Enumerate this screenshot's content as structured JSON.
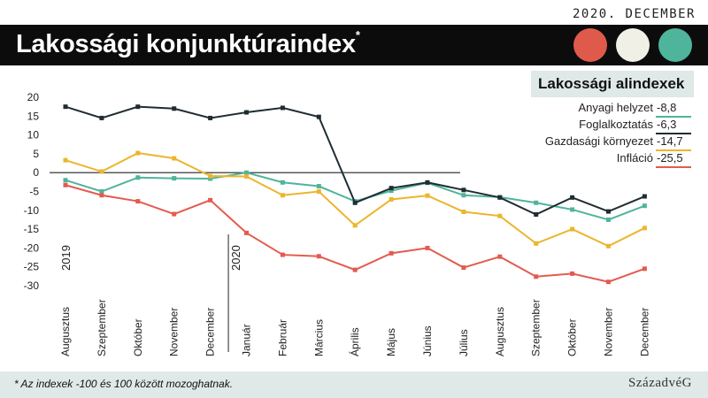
{
  "header": {
    "date": "2020. DECEMBER",
    "title": "Lakossági konjunktúraindex",
    "title_mark": "*"
  },
  "legend": {
    "title": "Lakossági alindexek",
    "items": [
      {
        "label": "Anyagi helyzet",
        "value": "-8,8",
        "color": "#4fb49c"
      },
      {
        "label": "Foglalkoztatás",
        "value": "-6,3",
        "color": "#1f2d33"
      },
      {
        "label": "Gazdasági környezet",
        "value": "-14,7",
        "color": "#ecb52c"
      },
      {
        "label": "Infláció",
        "value": "-25,5",
        "color": "#e35b4f"
      }
    ]
  },
  "footer": {
    "note": "* Az indexek -100 és 100 között mozoghatnak.",
    "brand": "SzázadvéG"
  },
  "chart_data": {
    "type": "line",
    "x": [
      "Augusztus",
      "Szeptember",
      "Október",
      "November",
      "December",
      "Január",
      "Február",
      "Március",
      "Április",
      "Május",
      "Június",
      "Július",
      "Augusztus",
      "Szeptember",
      "Október",
      "November",
      "December"
    ],
    "year_labels": [
      {
        "label": "2019",
        "at_index": 0
      },
      {
        "label": "2020",
        "at_index": 5
      }
    ],
    "ylim": [
      -30,
      20
    ],
    "yticks": [
      20,
      15,
      10,
      5,
      0,
      -5,
      -10,
      -15,
      -20,
      -25,
      -30
    ],
    "series": [
      {
        "name": "Anyagi helyzet",
        "color": "#4fb49c",
        "values": [
          -2,
          -5,
          -1.3,
          -1.5,
          -1.6,
          0,
          -2.6,
          -3.6,
          -7.6,
          -4.8,
          -2.7,
          -6,
          -6.5,
          -8,
          -9.8,
          -12.5,
          -8.8
        ]
      },
      {
        "name": "Foglalkoztatás",
        "color": "#1f2d33",
        "values": [
          17.5,
          14.5,
          17.5,
          17,
          14.5,
          16,
          17.2,
          14.8,
          -8,
          -4.1,
          -2.6,
          -4.6,
          -6.6,
          -11.1,
          -6.6,
          -10.3,
          -6.3
        ]
      },
      {
        "name": "Gazdasági környezet",
        "color": "#ecb52c",
        "values": [
          3.3,
          0.3,
          5.2,
          3.8,
          -0.9,
          -1,
          -6,
          -5,
          -14,
          -7.1,
          -6.1,
          -10.4,
          -11.5,
          -18.8,
          -15,
          -19.5,
          -14.7
        ]
      },
      {
        "name": "Infláció",
        "color": "#e35b4f",
        "values": [
          -3.3,
          -6,
          -7.6,
          -11,
          -7.3,
          -16,
          -21.8,
          -22.2,
          -25.8,
          -21.4,
          -20,
          -25.2,
          -22.3,
          -27.6,
          -26.8,
          -29,
          -25.5
        ]
      }
    ],
    "grid": false,
    "legend_position": "top-right"
  }
}
